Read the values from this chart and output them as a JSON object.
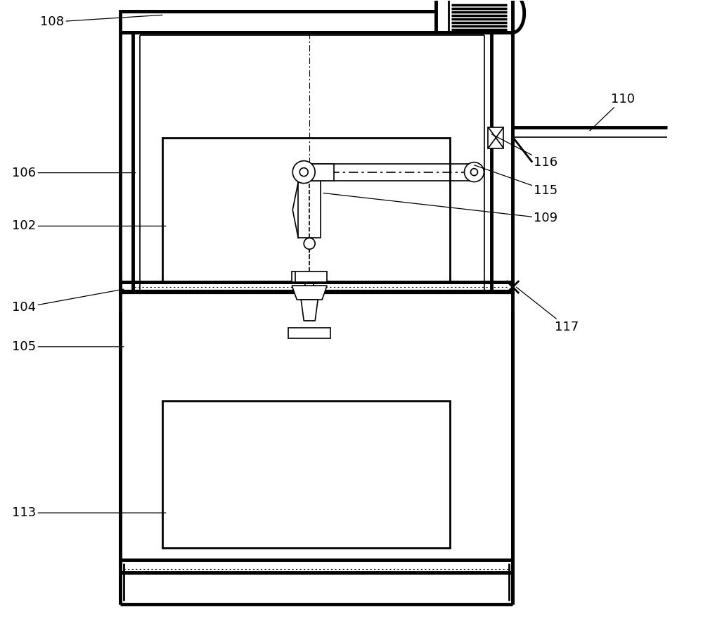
{
  "bg_color": "#ffffff",
  "line_color": "#000000",
  "label_fontsize": 13,
  "figsize": [
    10.0,
    8.9
  ],
  "dpi": 100
}
